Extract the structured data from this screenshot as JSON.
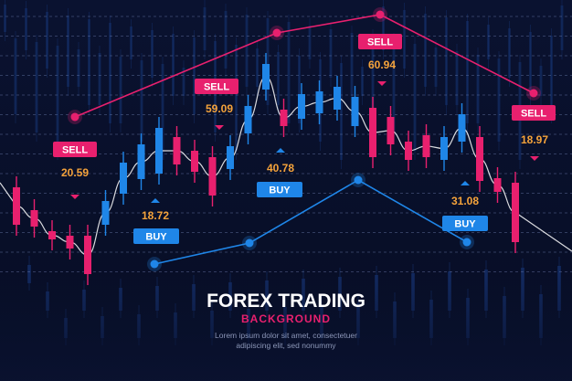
{
  "title": "FOREX TRADING",
  "subtitle": "BACKGROUND",
  "body_text": [
    "Lorem ipsum dolor sit amet, consectetuer",
    "adipiscing elit, sed nonummy"
  ],
  "colors": {
    "background": "#0b1431",
    "bull": "#1f86e8",
    "bear": "#e8206e",
    "price": "#f5a33b",
    "white": "#ffffff"
  },
  "chart_data": {
    "type": "candlestick",
    "grid": true,
    "candles": [
      {
        "dir": "down",
        "o": 205,
        "c": 246
      },
      {
        "dir": "down",
        "o": 230,
        "c": 248
      },
      {
        "dir": "down",
        "o": 253,
        "c": 262
      },
      {
        "dir": "down",
        "o": 258,
        "c": 272
      },
      {
        "dir": "down",
        "o": 258,
        "c": 300
      },
      {
        "dir": "up",
        "o": 246,
        "c": 220
      },
      {
        "dir": "up",
        "o": 212,
        "c": 178
      },
      {
        "dir": "up",
        "o": 196,
        "c": 158
      },
      {
        "dir": "up",
        "o": 190,
        "c": 140
      },
      {
        "dir": "down",
        "o": 150,
        "c": 180
      },
      {
        "dir": "down",
        "o": 165,
        "c": 188
      },
      {
        "dir": "down",
        "o": 172,
        "c": 214
      },
      {
        "dir": "up",
        "o": 185,
        "c": 160
      },
      {
        "dir": "up",
        "o": 146,
        "c": 116
      },
      {
        "dir": "up",
        "o": 98,
        "c": 70
      },
      {
        "dir": "down",
        "o": 120,
        "c": 138
      },
      {
        "dir": "up",
        "o": 130,
        "c": 103
      },
      {
        "dir": "up",
        "o": 124,
        "c": 100
      },
      {
        "dir": "up",
        "o": 120,
        "c": 95
      },
      {
        "dir": "up",
        "o": 138,
        "c": 106
      },
      {
        "dir": "down",
        "o": 118,
        "c": 172
      },
      {
        "dir": "down",
        "o": 128,
        "c": 158
      },
      {
        "dir": "down",
        "o": 155,
        "c": 175
      },
      {
        "dir": "down",
        "o": 148,
        "c": 172
      },
      {
        "dir": "up",
        "o": 175,
        "c": 150
      },
      {
        "dir": "up",
        "o": 155,
        "c": 125
      },
      {
        "dir": "down",
        "o": 150,
        "c": 198
      },
      {
        "dir": "down",
        "o": 195,
        "c": 210
      },
      {
        "dir": "down",
        "o": 200,
        "c": 265
      }
    ],
    "signals": [
      {
        "type": "SELL",
        "price": "20.59"
      },
      {
        "type": "BUY",
        "price": "18.72"
      },
      {
        "type": "SELL",
        "price": "59.09"
      },
      {
        "type": "BUY",
        "price": "40.78"
      },
      {
        "type": "SELL",
        "price": "60.94"
      },
      {
        "type": "BUY",
        "price": "31.08"
      },
      {
        "type": "SELL",
        "price": "18.97"
      }
    ]
  }
}
